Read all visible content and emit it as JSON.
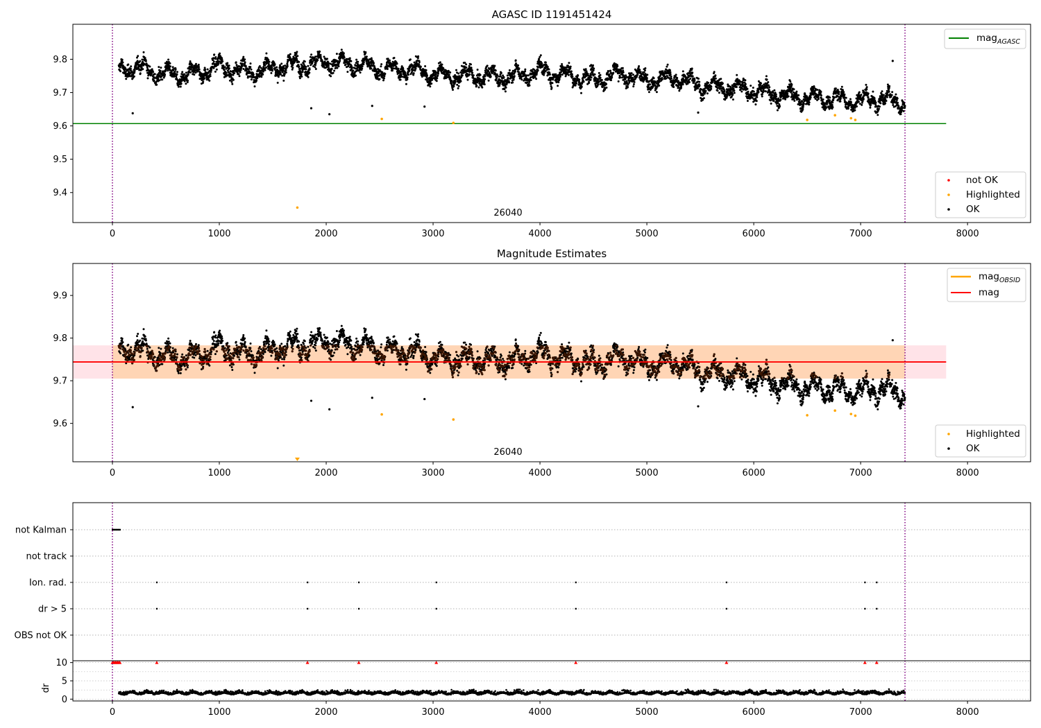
{
  "chart_data": [
    {
      "type": "scatter",
      "title": "AGASC ID 1191451424",
      "xlim": [
        -370,
        8590
      ],
      "ylim": [
        9.31,
        9.905
      ],
      "xticks": [
        "0",
        "1000",
        "2000",
        "3000",
        "4000",
        "5000",
        "6000",
        "7000",
        "8000"
      ],
      "yticks": [
        "9.4",
        "9.5",
        "9.6",
        "9.7",
        "9.8"
      ],
      "lines": [
        {
          "name": "mag_AGASC",
          "label_main": "mag",
          "label_sub": "AGASC",
          "color": "#008000",
          "y": 9.607,
          "x": [
            -370,
            7800
          ]
        }
      ],
      "vlines": [
        0,
        7415
      ],
      "vline_color": "#800080",
      "series": [
        {
          "name": "not OK",
          "color": "#ff0000",
          "points": []
        },
        {
          "name": "Highlighted",
          "color": "#ffa500",
          "points": [
            [
              1730,
              9.355
            ],
            [
              2520,
              9.621
            ],
            [
              3190,
              9.609
            ],
            [
              6500,
              9.618
            ],
            [
              6760,
              9.632
            ],
            [
              6910,
              9.623
            ],
            [
              6950,
              9.618
            ]
          ]
        },
        {
          "name": "OK",
          "color": "#000000",
          "trend": [
            [
              60,
              9.76
            ],
            [
              200,
              9.78
            ],
            [
              400,
              9.76
            ],
            [
              700,
              9.75
            ],
            [
              1000,
              9.78
            ],
            [
              1300,
              9.76
            ],
            [
              1600,
              9.78
            ],
            [
              2000,
              9.79
            ],
            [
              2300,
              9.785
            ],
            [
              2500,
              9.77
            ],
            [
              2800,
              9.77
            ],
            [
              3100,
              9.75
            ],
            [
              3400,
              9.75
            ],
            [
              3700,
              9.745
            ],
            [
              4000,
              9.765
            ],
            [
              4300,
              9.75
            ],
            [
              4500,
              9.74
            ],
            [
              4800,
              9.755
            ],
            [
              5000,
              9.735
            ],
            [
              5300,
              9.745
            ],
            [
              5500,
              9.72
            ],
            [
              5800,
              9.715
            ],
            [
              6000,
              9.705
            ],
            [
              6200,
              9.695
            ],
            [
              6500,
              9.685
            ],
            [
              6800,
              9.68
            ],
            [
              7000,
              9.675
            ],
            [
              7200,
              9.685
            ],
            [
              7415,
              9.665
            ]
          ],
          "outliers": [
            [
              190,
              9.638
            ],
            [
              1860,
              9.653
            ],
            [
              2030,
              9.635
            ],
            [
              2430,
              9.66
            ],
            [
              2920,
              9.658
            ],
            [
              5480,
              9.64
            ],
            [
              7300,
              9.795
            ]
          ]
        }
      ],
      "annotation": "26040",
      "legend_lines": "top-right",
      "legend_points": "lower-right"
    },
    {
      "type": "scatter",
      "title": "Magnitude Estimates",
      "xlim": [
        -370,
        8590
      ],
      "ylim": [
        9.51,
        9.975
      ],
      "xticks": [
        "0",
        "1000",
        "2000",
        "3000",
        "4000",
        "5000",
        "6000",
        "7000",
        "8000"
      ],
      "yticks": [
        "9.6",
        "9.7",
        "9.8",
        "9.9"
      ],
      "lines": [
        {
          "name": "mag_OBSID",
          "label_main": "mag",
          "label_sub": "OBSID",
          "color": "#ffa500"
        },
        {
          "name": "mag",
          "label_main": "mag",
          "label_sub": "",
          "color": "#ff0000",
          "y": 9.744,
          "x": [
            -370,
            7800
          ]
        }
      ],
      "band": {
        "y": [
          9.705,
          9.783
        ],
        "color": "#ffc0cb"
      },
      "obs_band": {
        "y": [
          9.705,
          9.783
        ],
        "color": "#ffa500"
      },
      "vlines": [
        0,
        7415
      ],
      "series": [
        {
          "name": "Highlighted",
          "color": "#ffa500",
          "points": [
            [
              2520,
              9.621
            ],
            [
              3190,
              9.609
            ],
            [
              6500,
              9.619
            ],
            [
              6760,
              9.63
            ],
            [
              6910,
              9.622
            ],
            [
              6950,
              9.618
            ]
          ]
        },
        {
          "name": "OK",
          "color": "#000000",
          "outliers": [
            [
              190,
              9.638
            ],
            [
              1860,
              9.653
            ],
            [
              2030,
              9.633
            ],
            [
              2430,
              9.66
            ],
            [
              2920,
              9.657
            ],
            [
              5480,
              9.64
            ],
            [
              7300,
              9.795
            ]
          ]
        }
      ],
      "marker_below": {
        "x": 1730,
        "color": "#ffa500"
      },
      "annotation": "26040",
      "legend_lines": "top-right",
      "legend_points": "lower-right"
    },
    {
      "type": "scatter",
      "xlim": [
        -370,
        8590
      ],
      "xticks": [
        "0",
        "1000",
        "2000",
        "3000",
        "4000",
        "5000",
        "6000",
        "7000",
        "8000"
      ],
      "flag_labels": [
        "not Kalman",
        "not track",
        "Ion. rad.",
        "dr > 5",
        "OBS not OK"
      ],
      "flag_events": {
        "not Kalman": [
          0,
          10,
          20,
          30,
          40,
          50,
          60,
          70
        ],
        "not track": [],
        "Ion. rad.": [
          415,
          1825,
          2305,
          3030,
          4335,
          5745,
          7040,
          7150
        ],
        "dr > 5": [
          415,
          1825,
          2305,
          3030,
          4335,
          5745,
          7040,
          7150
        ],
        "OBS not OK": []
      },
      "dr_ylabel": "dr",
      "dr_yticks": [
        "0",
        "5",
        "10"
      ],
      "dr_ylim": [
        -0.5,
        10.5
      ],
      "dr_clipped": [
        0,
        10,
        20,
        30,
        40,
        50,
        60,
        70,
        415,
        1825,
        2305,
        3030,
        4335,
        5745,
        7040,
        7150
      ],
      "vlines": [
        0,
        7415
      ]
    }
  ]
}
